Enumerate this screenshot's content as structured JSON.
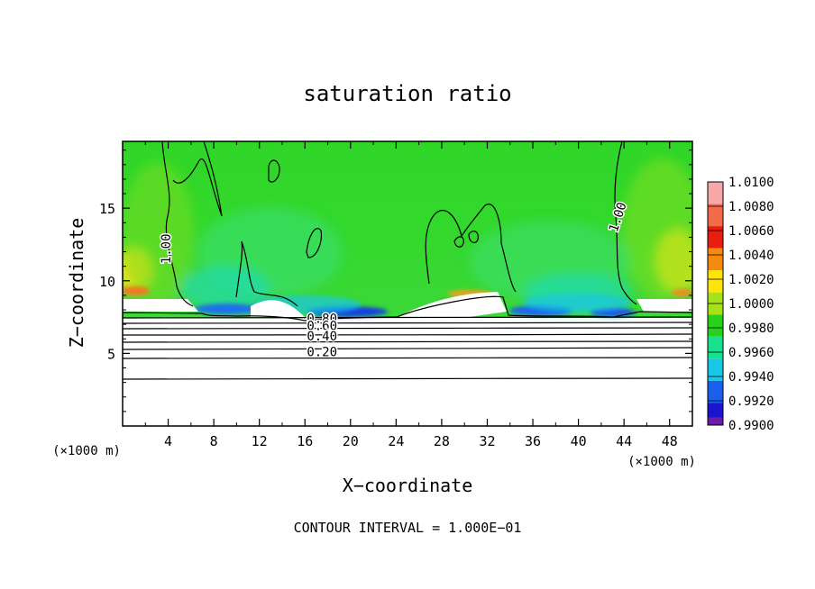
{
  "chart_data": {
    "type": "heatmap",
    "title": "saturation ratio",
    "xlabel": "X−coordinate",
    "ylabel": "Z−coordinate",
    "x_unit_label": "(×1000 m)",
    "y_unit_label": "(×1000 m)",
    "xlim": [
      0,
      50
    ],
    "ylim": [
      0,
      19.6
    ],
    "x_ticks": [
      4,
      8,
      12,
      16,
      20,
      24,
      28,
      32,
      36,
      40,
      44,
      48
    ],
    "y_ticks": [
      5,
      10,
      15
    ],
    "colorbar": {
      "levels": [
        {
          "value": "1.0100",
          "color": "#f7a8a8"
        },
        {
          "value": "1.0080",
          "color": "#f26a4a"
        },
        {
          "value": "1.0060",
          "color": "#e81e10"
        },
        {
          "value": "1.0040",
          "color": "#f58a10"
        },
        {
          "value": "1.0020",
          "color": "#ffe40a"
        },
        {
          "value": "1.0000",
          "color": "#a6e21c"
        },
        {
          "value": "0.9980",
          "color": "#28d21c"
        },
        {
          "value": "0.9960",
          "color": "#18e08c"
        },
        {
          "value": "0.9940",
          "color": "#18c6e6"
        },
        {
          "value": "0.9920",
          "color": "#1a60ec"
        },
        {
          "value": "0.9900",
          "color": "#1c14cc"
        }
      ],
      "bottom_color": "#6a1ca8"
    },
    "contour_labels": [
      {
        "text": "1.00",
        "x": 4.2,
        "y": 12.2,
        "rotate": -90
      },
      {
        "text": "1.00",
        "x": 43.8,
        "y": 14.3,
        "rotate": -72
      },
      {
        "text": "0.80",
        "x": 17.5,
        "y": 7.1
      },
      {
        "text": "0.60",
        "x": 17.5,
        "y": 6.6
      },
      {
        "text": "0.40",
        "x": 17.5,
        "y": 5.9
      },
      {
        "text": "0.20",
        "x": 17.5,
        "y": 4.8
      }
    ],
    "contour_interval": "CONTOUR INTERVAL = 1.000E−01"
  }
}
